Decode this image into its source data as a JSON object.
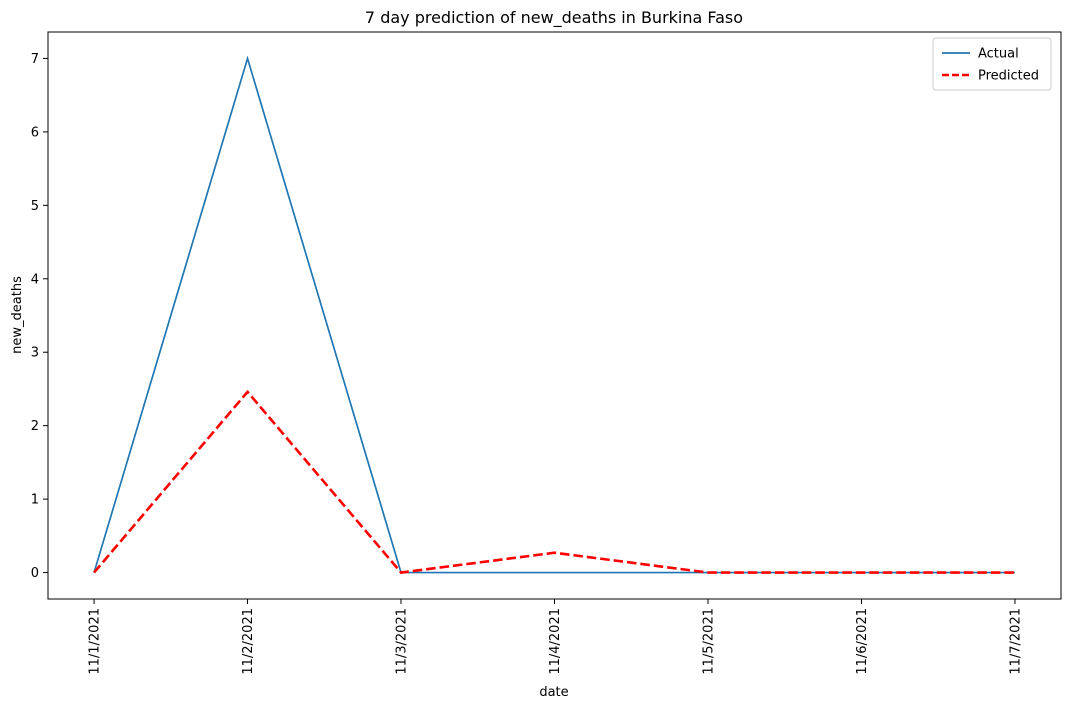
{
  "chart_data": {
    "type": "line",
    "title": "7 day prediction of new_deaths in Burkina Faso",
    "xlabel": "date",
    "ylabel": "new_deaths",
    "categories": [
      "11/1/2021",
      "11/2/2021",
      "11/3/2021",
      "11/4/2021",
      "11/5/2021",
      "11/6/2021",
      "11/7/2021"
    ],
    "series": [
      {
        "name": "Actual",
        "values": [
          0,
          7,
          0,
          0,
          0,
          0,
          0
        ],
        "color": "#1f77b4",
        "style": "solid"
      },
      {
        "name": "Predicted",
        "values": [
          0,
          2.46,
          0,
          0.27,
          0,
          0,
          0
        ],
        "color": "#ff0000",
        "style": "dashed"
      }
    ],
    "ylim": [
      -0.36,
      7.36
    ],
    "yticks": [
      0,
      1,
      2,
      3,
      4,
      5,
      6,
      7
    ],
    "grid": false,
    "legend_position": "top-right"
  }
}
